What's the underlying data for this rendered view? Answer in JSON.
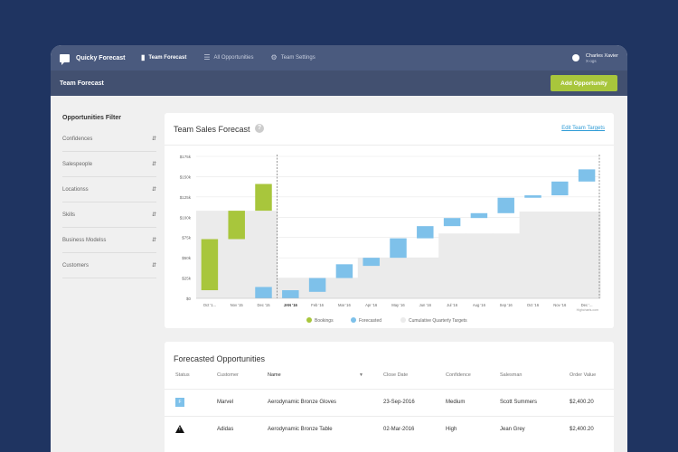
{
  "nav": {
    "brand": "Quicky Forecast",
    "items": [
      {
        "label": "Team Forecast",
        "icon": "bar-chart-icon"
      },
      {
        "label": "All Opportunities",
        "icon": "list-icon"
      },
      {
        "label": "Team Settings",
        "icon": "gear-icon"
      }
    ],
    "user_name": "Charles Xavier",
    "user_sub": "X-ogs"
  },
  "subheader": {
    "title": "Team Forecast",
    "add_button": "Add Opportunity"
  },
  "sidebar": {
    "title": "Opportunities Filter",
    "filters": [
      "Confidences",
      "Salespeople",
      "Locationss",
      "Skills",
      "Business Modelss",
      "Customers"
    ]
  },
  "chart_card": {
    "title": "Team Sales Forecast",
    "help": "?",
    "edit_link": "Edit Team Targets"
  },
  "chart_data": {
    "type": "bar",
    "categories": [
      "Oct '1...",
      "Nov '15",
      "Dec '15",
      "JAN '16",
      "Feb '16",
      "Mar '16",
      "Apr '16",
      "May '16",
      "Jun '16",
      "Jul '16",
      "Aug '16",
      "Sep '16",
      "Oct '16",
      "Nov '16",
      "Dec '..."
    ],
    "y_ticks": [
      "$0",
      "$25k",
      "$50k",
      "$75k",
      "$100k",
      "$125k",
      "$150k",
      "$175k"
    ],
    "ylim": [
      0,
      175000
    ],
    "series": [
      {
        "name": "Bookings",
        "color": "#a8c63c",
        "ranges": [
          [
            10000,
            73000
          ],
          [
            73000,
            108000
          ],
          [
            108000,
            141000
          ],
          null,
          null,
          null,
          null,
          null,
          null,
          null,
          null,
          null,
          null,
          null,
          null
        ]
      },
      {
        "name": "Forecasted",
        "color": "#7ec1ea",
        "ranges": [
          null,
          null,
          [
            0,
            14000
          ],
          [
            0,
            10000
          ],
          [
            8000,
            25000
          ],
          [
            25000,
            42000
          ],
          [
            40000,
            50000
          ],
          [
            50000,
            74000
          ],
          [
            74000,
            89000
          ],
          [
            89000,
            99000
          ],
          [
            99000,
            105000
          ],
          [
            105000,
            124000
          ],
          [
            124000,
            127000
          ],
          [
            127000,
            144000
          ],
          [
            144000,
            159000
          ]
        ]
      },
      {
        "name": "Cumulative Quarterly Targets",
        "color": "#ebebeb",
        "ranges": [
          [
            0,
            108000
          ],
          [
            0,
            108000
          ],
          [
            0,
            108000
          ],
          [
            0,
            25000
          ],
          [
            0,
            25000
          ],
          [
            0,
            25000
          ],
          [
            0,
            50000
          ],
          [
            0,
            50000
          ],
          [
            0,
            50000
          ],
          [
            0,
            80000
          ],
          [
            0,
            80000
          ],
          [
            0,
            80000
          ],
          [
            0,
            107000
          ],
          [
            0,
            107000
          ],
          [
            0,
            107000
          ]
        ]
      }
    ],
    "credit": "Highcharts.com"
  },
  "table": {
    "title": "Forecasted Opportunities",
    "headers": {
      "status": "Status",
      "customer": "Customer",
      "name": "Name",
      "close_date": "Close Date",
      "confidence": "Confidence",
      "salesman": "Salesman",
      "order_value": "Order Value"
    },
    "sort_indicator": "▼",
    "rows": [
      {
        "status": "F",
        "status_icon": "forecast-badge-icon",
        "customer": "Marvel",
        "name": "Aerodynamic Bronze Gloves",
        "close_date": "23-Sep-2016",
        "confidence": "Medium",
        "salesman": "Scott Summers",
        "order_value": "$2,400.20"
      },
      {
        "status": "!",
        "status_icon": "warning-icon",
        "customer": "Adidas",
        "name": "Aerodynamic Bronze Table",
        "close_date": "02-Mar-2016",
        "confidence": "High",
        "salesman": "Jean Grey",
        "order_value": "$2,400.20"
      }
    ]
  }
}
